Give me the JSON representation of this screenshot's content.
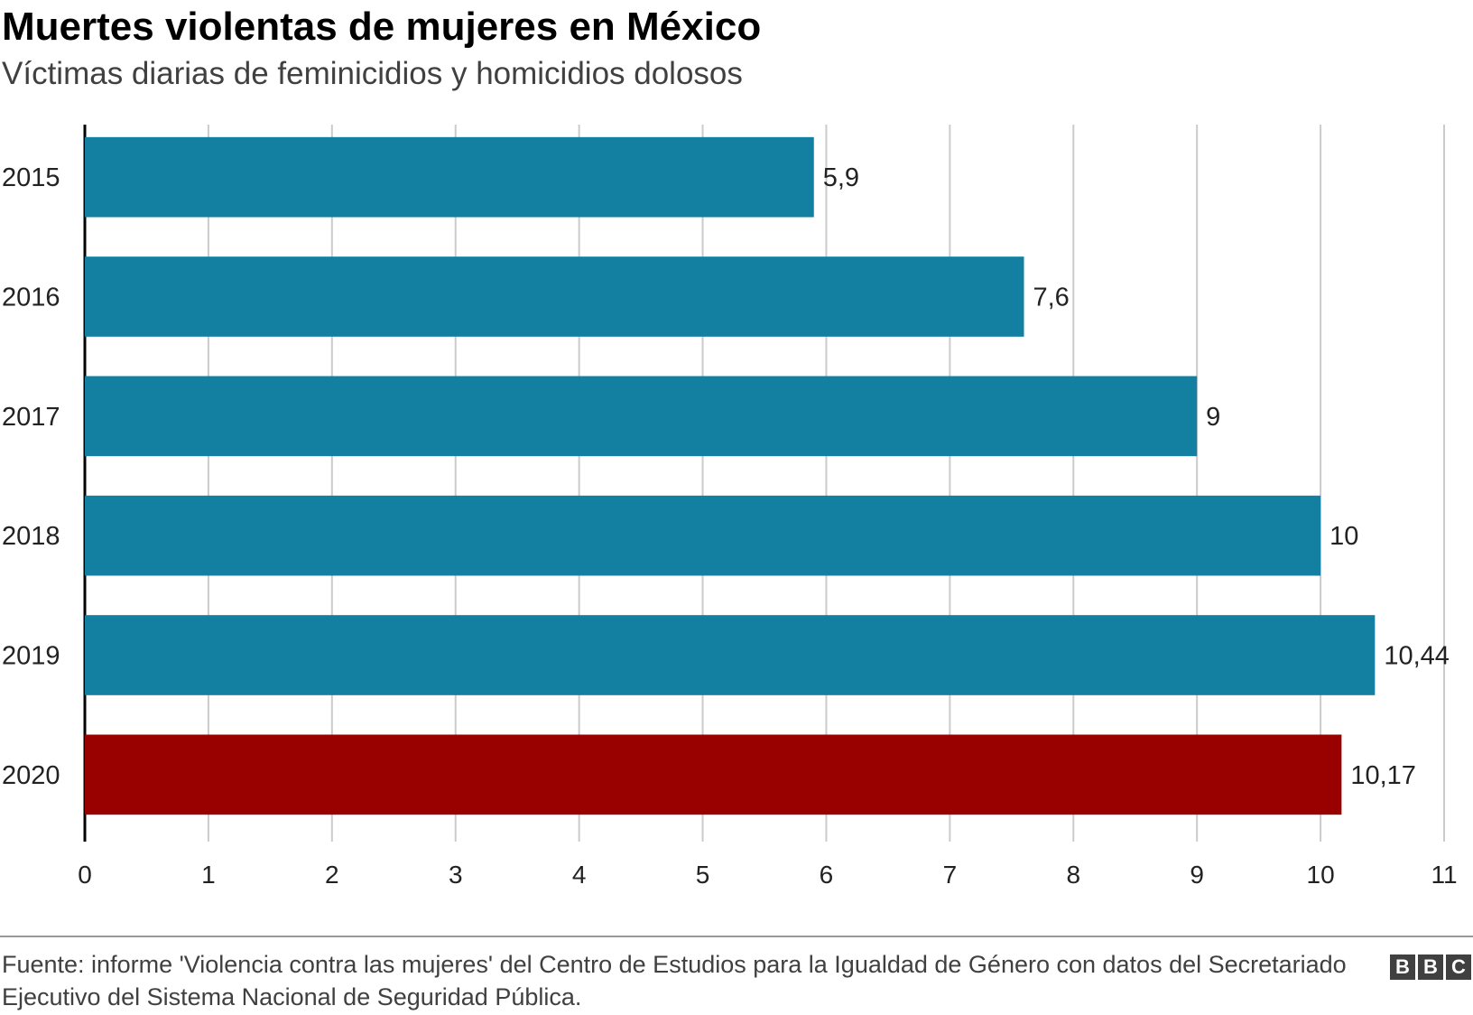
{
  "title": "Muertes violentas de mujeres en México",
  "subtitle": "Víctimas diarias de feminicidios y homicidios dolosos",
  "chart_data": {
    "type": "bar",
    "orientation": "horizontal",
    "categories": [
      "2015",
      "2016",
      "2017",
      "2018",
      "2019",
      "2020"
    ],
    "values": [
      5.9,
      7.6,
      9,
      10,
      10.44,
      10.17
    ],
    "value_labels": [
      "5,9",
      "7,6",
      "9",
      "10",
      "10,44",
      "10,17"
    ],
    "xlim": [
      0,
      11
    ],
    "x_ticks": [
      0,
      1,
      2,
      3,
      4,
      5,
      6,
      7,
      8,
      9,
      10,
      11
    ],
    "grid": true,
    "colors": {
      "default": "#1380a1",
      "highlight": "#990000",
      "gridline": "#cbcbcb",
      "axis": "#000000"
    },
    "highlight_category": "2020"
  },
  "footer": {
    "source": "Fuente: informe 'Violencia contra las mujeres' del Centro de Estudios para la Igualdad de Género con datos del Secretariado Ejecutivo del Sistema Nacional de Seguridad Pública.",
    "logo": [
      "B",
      "B",
      "C"
    ]
  }
}
